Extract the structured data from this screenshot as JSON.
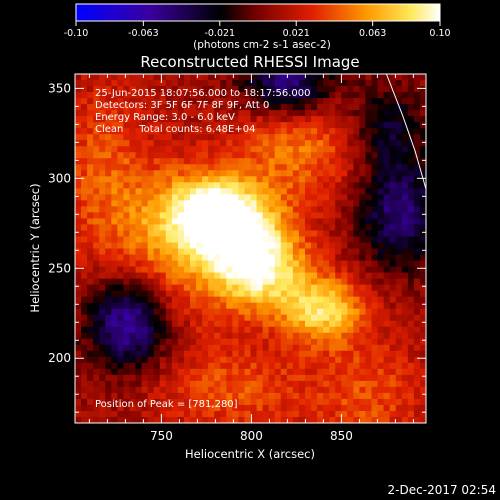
{
  "footer": {
    "date": "2-Dec-2017 02:54"
  },
  "chart_data": {
    "type": "heatmap",
    "title": "Reconstructed RHESSI Image",
    "xlabel": "Heliocentric X (arcsec)",
    "ylabel": "Heliocentric Y (arcsec)",
    "xlim": [
      702,
      897
    ],
    "ylim": [
      164,
      358
    ],
    "xticks": [
      750,
      800,
      850
    ],
    "yticks": [
      200,
      250,
      300,
      350
    ],
    "colorbar": {
      "unit_label": "(photons cm-2 s-1 asec-2)",
      "range": [
        -0.1,
        0.1
      ],
      "tick_values": [
        -0.1,
        -0.063,
        -0.021,
        0.021,
        0.063,
        0.1
      ],
      "tick_labels": [
        "-0.10",
        "-0.063",
        "-0.021",
        "0.021",
        "0.063",
        "0.10"
      ],
      "colormap": [
        "#0000ff",
        "#3a00a0",
        "#000000",
        "#7a0000",
        "#e02000",
        "#ff9a00",
        "#ffe85a",
        "#ffffff"
      ]
    },
    "info_lines": [
      "25-Jun-2015 18:07:56.000 to 18:17:56.000",
      "Detectors: 3F 5F 6F 7F 8F 9F, Att 0",
      "Energy Range: 3.0 - 6.0 keV",
      "Clean     Total counts: 6.48E+04"
    ],
    "peak_text": "Position of Peak = [781,280]",
    "peak": [
      781,
      280
    ],
    "features": [
      {
        "x": 781,
        "y": 280,
        "sx": 20,
        "sy": 15,
        "amp": 0.095
      },
      {
        "x": 803,
        "y": 252,
        "sx": 19,
        "sy": 17,
        "amp": 0.09
      },
      {
        "x": 840,
        "y": 227,
        "sx": 17,
        "sy": 13,
        "amp": 0.07
      },
      {
        "x": 755,
        "y": 260,
        "sx": 26,
        "sy": 30,
        "amp": 0.04
      },
      {
        "x": 826,
        "y": 318,
        "sx": 26,
        "sy": 22,
        "amp": 0.04
      },
      {
        "x": 790,
        "y": 182,
        "sx": 32,
        "sy": 18,
        "amp": 0.03
      },
      {
        "x": 866,
        "y": 180,
        "sx": 22,
        "sy": 22,
        "amp": 0.03
      },
      {
        "x": 718,
        "y": 306,
        "sx": 20,
        "sy": 34,
        "amp": 0.03
      },
      {
        "x": 732,
        "y": 220,
        "sx": 16,
        "sy": 18,
        "amp": -0.08
      },
      {
        "x": 820,
        "y": 352,
        "sx": 18,
        "sy": 13,
        "amp": -0.07
      },
      {
        "x": 882,
        "y": 282,
        "sx": 16,
        "sy": 22,
        "amp": -0.06
      },
      {
        "x": 875,
        "y": 331,
        "sx": 14,
        "sy": 16,
        "amp": -0.04
      }
    ],
    "limb_curve": [
      [
        875,
        358
      ],
      [
        884,
        335
      ],
      [
        891,
        315
      ],
      [
        897,
        294
      ]
    ]
  }
}
